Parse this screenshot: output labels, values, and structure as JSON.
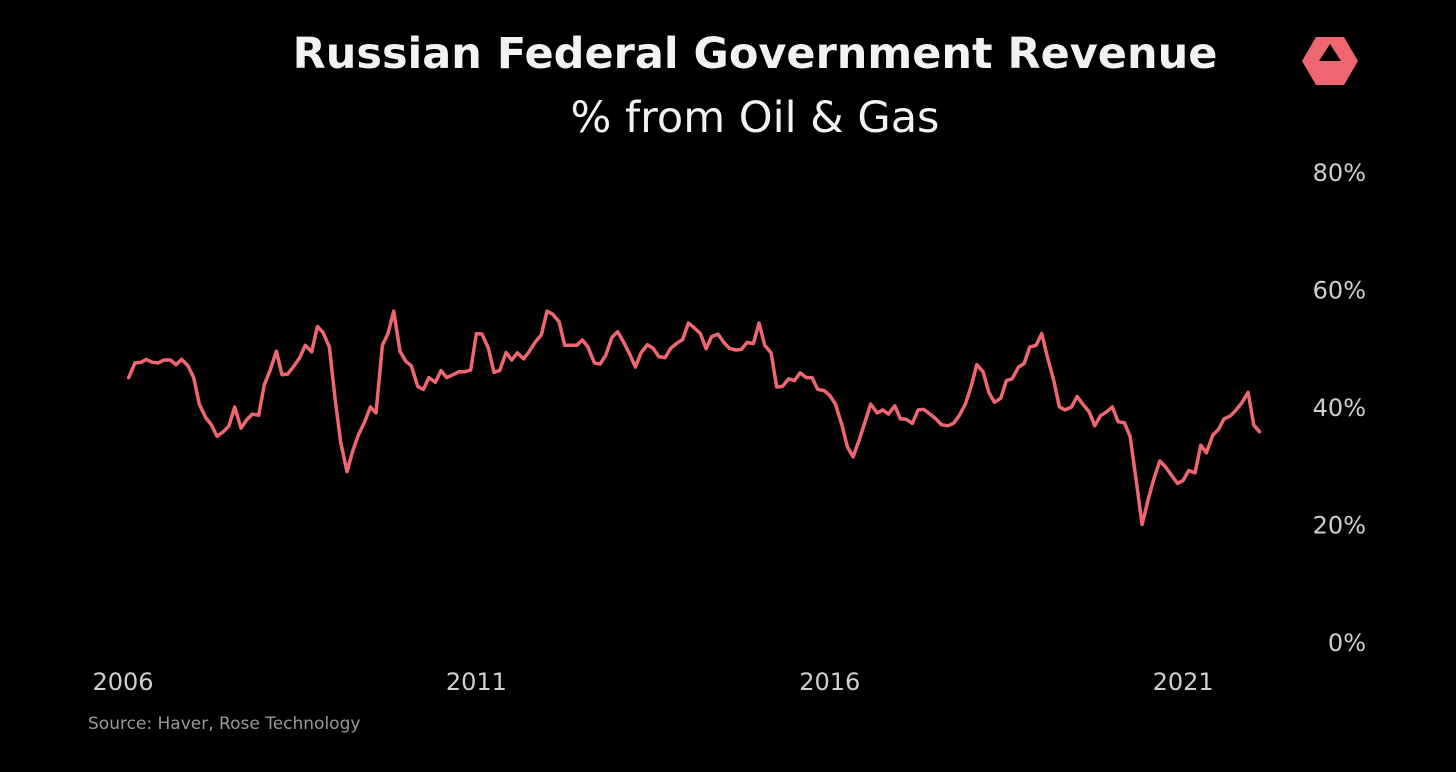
{
  "colors": {
    "background": "#000000",
    "line": "#EE6770",
    "title": "#F2F2F2",
    "axis_text": "#CFCFCF",
    "source_text": "#9A9A9A",
    "logo": "#EE6770"
  },
  "logo": {
    "icon": "triangle-hexagon-logo-icon"
  },
  "chart_data": {
    "type": "line",
    "title": "Russian Federal Government Revenue",
    "subtitle": "% from Oil & Gas",
    "source": "Source: Haver, Rose Technology",
    "y_axis_side": "right",
    "ylim": [
      0,
      80
    ],
    "y_ticks": [
      0,
      20,
      40,
      60,
      80
    ],
    "y_tick_labels": [
      "0%",
      "20%",
      "40%",
      "60%",
      "80%"
    ],
    "xlim": [
      2006.0,
      2022.3
    ],
    "x_ticks": [
      2006,
      2011,
      2016,
      2021
    ],
    "x_tick_labels": [
      "2006",
      "2011",
      "2016",
      "2021"
    ],
    "grid": false,
    "legend": "none",
    "series": [
      {
        "x": [
          2006.08,
          2006.17,
          2006.25,
          2006.33,
          2006.42,
          2006.5,
          2006.58,
          2006.67,
          2006.75,
          2006.83,
          2006.92,
          2007.0,
          2007.08,
          2007.17,
          2007.25,
          2007.33,
          2007.42,
          2007.5,
          2007.58,
          2007.67,
          2007.75,
          2007.83,
          2007.92,
          2008.0,
          2008.08,
          2008.17,
          2008.25,
          2008.33,
          2008.42,
          2008.5,
          2008.58,
          2008.67,
          2008.75,
          2008.83,
          2008.92,
          2009.0,
          2009.08,
          2009.17,
          2009.25,
          2009.33,
          2009.42,
          2009.5,
          2009.58,
          2009.67,
          2009.75,
          2009.83,
          2009.92,
          2010.0,
          2010.08,
          2010.17,
          2010.25,
          2010.33,
          2010.42,
          2010.5,
          2010.58,
          2010.67,
          2010.75,
          2010.83,
          2010.92,
          2011.0,
          2011.08,
          2011.17,
          2011.25,
          2011.33,
          2011.42,
          2011.5,
          2011.58,
          2011.67,
          2011.75,
          2011.83,
          2011.92,
          2012.0,
          2012.08,
          2012.17,
          2012.25,
          2012.33,
          2012.42,
          2012.5,
          2012.58,
          2012.67,
          2012.75,
          2012.83,
          2012.92,
          2013.0,
          2013.08,
          2013.17,
          2013.25,
          2013.33,
          2013.42,
          2013.5,
          2013.58,
          2013.67,
          2013.75,
          2013.83,
          2013.92,
          2014.0,
          2014.08,
          2014.17,
          2014.25,
          2014.33,
          2014.42,
          2014.5,
          2014.58,
          2014.67,
          2014.75,
          2014.83,
          2014.92,
          2015.0,
          2015.08,
          2015.17,
          2015.25,
          2015.33,
          2015.42,
          2015.5,
          2015.58,
          2015.67,
          2015.75,
          2015.83,
          2015.92,
          2016.0,
          2016.08,
          2016.17,
          2016.25,
          2016.33,
          2016.42,
          2016.5,
          2016.58,
          2016.67,
          2016.75,
          2016.83,
          2016.92,
          2017.0,
          2017.08,
          2017.17,
          2017.25,
          2017.33,
          2017.42,
          2017.5,
          2017.58,
          2017.67,
          2017.75,
          2017.83,
          2017.92,
          2018.0,
          2018.08,
          2018.17,
          2018.25,
          2018.33,
          2018.42,
          2018.5,
          2018.58,
          2018.67,
          2018.75,
          2018.83,
          2018.92,
          2019.0,
          2019.08,
          2019.17,
          2019.25,
          2019.33,
          2019.42,
          2019.5,
          2019.58,
          2019.67,
          2019.75,
          2019.83,
          2019.92,
          2020.0,
          2020.08,
          2020.17,
          2020.25,
          2020.33,
          2020.42,
          2020.5,
          2020.58,
          2020.67,
          2020.75,
          2020.83,
          2020.92,
          2021.0,
          2021.08,
          2021.17,
          2021.25,
          2021.33,
          2021.42,
          2021.5,
          2021.58,
          2021.67,
          2021.75,
          2021.83,
          2021.92,
          2022.0,
          2022.08
        ],
        "y": [
          45,
          47.5,
          47.6,
          48.1,
          47.6,
          47.5,
          48,
          48,
          47.2,
          48.1,
          47,
          45,
          40.5,
          38.2,
          37,
          35,
          35.8,
          36.8,
          40,
          36.4,
          37.8,
          38.8,
          38.6,
          43.8,
          46.2,
          49.5,
          45.5,
          45.6,
          47,
          48.4,
          50.5,
          49.4,
          53.7,
          52.7,
          50.2,
          41.5,
          34,
          29,
          32.5,
          35.2,
          37.5,
          40,
          39,
          50.5,
          52.5,
          56.3,
          49.5,
          47.8,
          47,
          43.5,
          43,
          45,
          44.2,
          46.2,
          45,
          45.5,
          46,
          46,
          46.3,
          52.5,
          52.4,
          50,
          45.9,
          46.2,
          49.3,
          48,
          49.2,
          48.2,
          49.5,
          51,
          52.3,
          56.3,
          55.8,
          54.5,
          50.5,
          50.5,
          50.5,
          51.4,
          50.2,
          47.5,
          47.3,
          48.8,
          51.9,
          52.8,
          51.1,
          49,
          46.8,
          49.2,
          50.6,
          50,
          48.6,
          48.4,
          50,
          50.8,
          51.5,
          54.3,
          53.5,
          52.5,
          49.9,
          52,
          52.4,
          51,
          50,
          49.7,
          49.8,
          51,
          50.8,
          54.3,
          50.5,
          49.2,
          43.4,
          43.5,
          44.8,
          44.5,
          45.8,
          45,
          45,
          43,
          42.8,
          42,
          40.5,
          37,
          33.2,
          31.5,
          34.5,
          37.5,
          40.5,
          39,
          39.5,
          38.8,
          40.2,
          38,
          37.9,
          37.2,
          39.5,
          39.6,
          38.8,
          38,
          37,
          36.8,
          37.2,
          38.5,
          40.5,
          43.5,
          47.2,
          46,
          42.5,
          40.8,
          41.5,
          44.5,
          44.8,
          46.8,
          47.4,
          50.2,
          50.5,
          52.5,
          48.5,
          44.5,
          40,
          39.5,
          40,
          41.8,
          40.5,
          39.2,
          36.8,
          38.5,
          39.2,
          40,
          37.5,
          37.3,
          35,
          28,
          20,
          24,
          27.5,
          30.8,
          29.8,
          28.5,
          27,
          27.5,
          29.2,
          28.8,
          33.5,
          32.2,
          35.2,
          36.2,
          38,
          38.5,
          39.5,
          40.7,
          42.5,
          36.9,
          35.8
        ]
      }
    ]
  }
}
